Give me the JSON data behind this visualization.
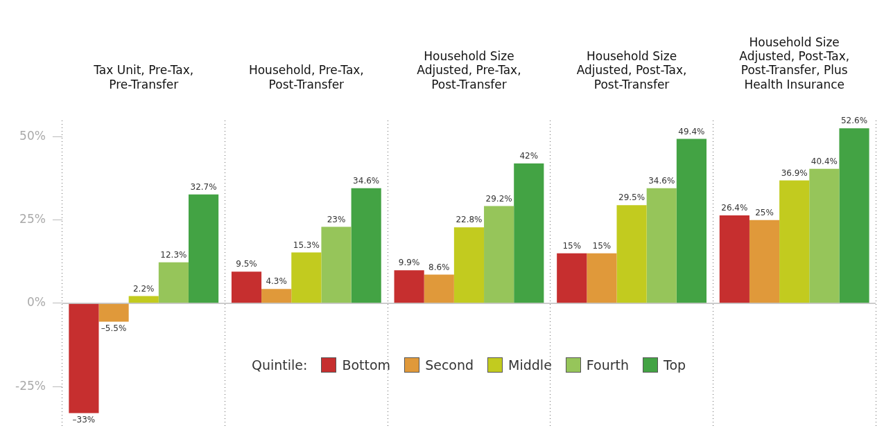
{
  "chart_data": {
    "type": "bar",
    "categories": [
      "Tax Unit, Pre-Tax, Pre-Transfer",
      "Household, Pre-Tax, Post-Transfer",
      "Household Size Adjusted, Pre-Tax, Post-Transfer",
      "Household Size Adjusted, Post-Tax, Post-Transfer",
      "Household Size Adjusted, Post-Tax, Post-Transfer, Plus Health Insurance"
    ],
    "series": [
      {
        "name": "Bottom",
        "color": "#c62f2f",
        "values": [
          -33,
          9.5,
          9.9,
          15,
          26.4
        ],
        "value_labels": [
          "–33%",
          "9.5%",
          "9.9%",
          "15%",
          "26.4%"
        ]
      },
      {
        "name": "Second",
        "color": "#e0993a",
        "values": [
          -5.5,
          4.3,
          8.6,
          15,
          25
        ],
        "value_labels": [
          "–5.5%",
          "4.3%",
          "8.6%",
          "15%",
          "25%"
        ]
      },
      {
        "name": "Middle",
        "color": "#c2cb1f",
        "values": [
          2.2,
          15.3,
          22.8,
          29.5,
          36.9
        ],
        "value_labels": [
          "2.2%",
          "15.3%",
          "22.8%",
          "29.5%",
          "36.9%"
        ]
      },
      {
        "name": "Fourth",
        "color": "#96c55a",
        "values": [
          12.3,
          23,
          29.2,
          34.6,
          40.4
        ],
        "value_labels": [
          "12.3%",
          "23%",
          "29.2%",
          "34.6%",
          "40.4%"
        ]
      },
      {
        "name": "Top",
        "color": "#43a344",
        "values": [
          32.7,
          34.6,
          42,
          49.4,
          52.6
        ],
        "value_labels": [
          "32.7%",
          "34.6%",
          "42%",
          "49.4%",
          "52.6%"
        ]
      }
    ],
    "legend_title": "Quintile:",
    "legend": "bottom",
    "grid": "x",
    "ylim": [
      -37,
      55
    ],
    "yticks": [
      {
        "value": -25,
        "label": "-25%"
      },
      {
        "value": 0,
        "label": "0%"
      },
      {
        "value": 25,
        "label": "25%"
      },
      {
        "value": 50,
        "label": "50%"
      }
    ]
  }
}
